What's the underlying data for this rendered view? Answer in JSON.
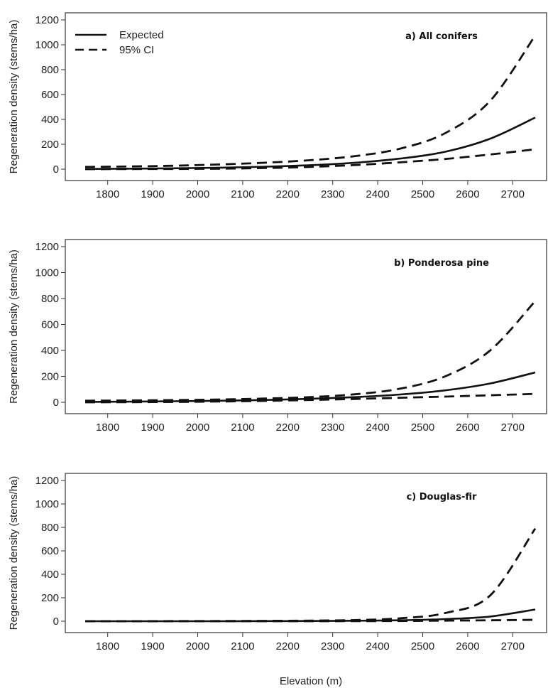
{
  "figure": {
    "xlabel": "Elevation (m)",
    "legend": {
      "placement": "top-left",
      "entries": [
        {
          "label": "Expected",
          "style": "solid"
        },
        {
          "label": "95% CI",
          "style": "dashed"
        }
      ]
    }
  },
  "chart_data": [
    {
      "type": "line",
      "title": "a) All conifers",
      "xlabel": "",
      "ylabel": "Regeneration density (stems/ha)",
      "xlim": [
        1750,
        2750
      ],
      "ylim": [
        0,
        1200
      ],
      "x_ticks": [
        1800,
        1900,
        2000,
        2100,
        2200,
        2300,
        2400,
        2500,
        2600,
        2700
      ],
      "y_ticks": [
        0,
        200,
        400,
        600,
        800,
        1000,
        1200
      ],
      "grid": false,
      "x": [
        1750,
        1850,
        1950,
        2050,
        2150,
        2250,
        2350,
        2450,
        2550,
        2650,
        2750
      ],
      "series": [
        {
          "name": "Expected",
          "style": "solid",
          "values": [
            2,
            4,
            7,
            12,
            20,
            32,
            52,
            85,
            140,
            245,
            415
          ]
        },
        {
          "name": "95% CI",
          "style": "dashed",
          "values": [
            18,
            22,
            28,
            38,
            52,
            72,
            105,
            165,
            290,
            550,
            1075
          ]
        },
        {
          "name": "95% CI",
          "style": "dashed",
          "values": [
            0,
            1,
            2,
            4,
            9,
            18,
            33,
            55,
            82,
            118,
            160
          ]
        }
      ]
    },
    {
      "type": "line",
      "title": "b) Ponderosa  pine",
      "xlabel": "",
      "ylabel": "Regeneration density (stems/ha)",
      "xlim": [
        1750,
        2750
      ],
      "ylim": [
        0,
        1200
      ],
      "x_ticks": [
        1800,
        1900,
        2000,
        2100,
        2200,
        2300,
        2400,
        2500,
        2600,
        2700
      ],
      "y_ticks": [
        0,
        200,
        400,
        600,
        800,
        1000,
        1200
      ],
      "grid": false,
      "x": [
        1750,
        1850,
        1950,
        2050,
        2150,
        2250,
        2350,
        2450,
        2550,
        2650,
        2750
      ],
      "series": [
        {
          "name": "Expected",
          "style": "solid",
          "values": [
            3,
            5,
            8,
            12,
            18,
            27,
            40,
            60,
            92,
            145,
            230
          ]
        },
        {
          "name": "95% CI",
          "style": "dashed",
          "values": [
            12,
            14,
            17,
            22,
            29,
            40,
            62,
            105,
            200,
            400,
            780
          ]
        },
        {
          "name": "95% CI",
          "style": "dashed",
          "values": [
            0,
            1,
            3,
            6,
            11,
            18,
            26,
            35,
            44,
            54,
            65
          ]
        }
      ]
    },
    {
      "type": "line",
      "title": "c) Douglas-fir",
      "xlabel": "",
      "ylabel": "Regeneration density (stems/ha)",
      "xlim": [
        1750,
        2750
      ],
      "ylim": [
        0,
        1200
      ],
      "x_ticks": [
        1800,
        1900,
        2000,
        2100,
        2200,
        2300,
        2400,
        2500,
        2600,
        2700
      ],
      "y_ticks": [
        0,
        200,
        400,
        600,
        800,
        1000,
        1200
      ],
      "grid": false,
      "x": [
        1750,
        1850,
        1950,
        2050,
        2150,
        2250,
        2350,
        2450,
        2550,
        2650,
        2750
      ],
      "series": [
        {
          "name": "Expected",
          "style": "solid",
          "values": [
            0,
            0,
            0,
            0,
            1,
            2,
            4,
            8,
            18,
            40,
            100
          ]
        },
        {
          "name": "95% CI",
          "style": "dashed",
          "values": [
            0,
            0,
            1,
            2,
            3,
            5,
            10,
            25,
            70,
            220,
            790
          ]
        },
        {
          "name": "95% CI",
          "style": "dashed",
          "values": [
            0,
            0,
            0,
            0,
            0,
            0,
            1,
            2,
            5,
            8,
            12
          ]
        }
      ]
    }
  ]
}
